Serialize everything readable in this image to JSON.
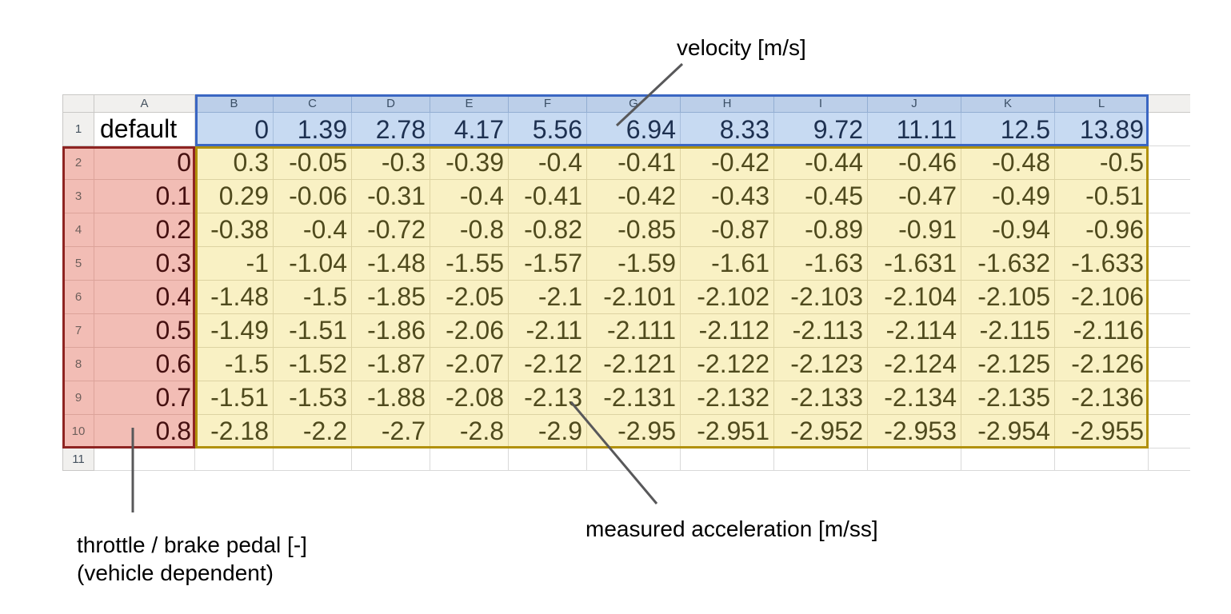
{
  "app": {
    "type": "spreadsheet-screenshot"
  },
  "spreadsheet": {
    "column_headers": [
      "A",
      "B",
      "C",
      "D",
      "E",
      "F",
      "G",
      "H",
      "I",
      "J",
      "K",
      "L"
    ],
    "row_numbers": [
      "1",
      "2",
      "3",
      "4",
      "5",
      "6",
      "7",
      "8",
      "9",
      "10",
      "11"
    ],
    "header_row": {
      "label": "default",
      "velocities": [
        "0",
        "1.39",
        "2.78",
        "4.17",
        "5.56",
        "6.94",
        "8.33",
        "9.72",
        "11.11",
        "12.5",
        "13.89"
      ]
    },
    "data_rows": [
      {
        "pedal": "0",
        "values": [
          "0.3",
          "-0.05",
          "-0.3",
          "-0.39",
          "-0.4",
          "-0.41",
          "-0.42",
          "-0.44",
          "-0.46",
          "-0.48",
          "-0.5"
        ]
      },
      {
        "pedal": "0.1",
        "values": [
          "0.29",
          "-0.06",
          "-0.31",
          "-0.4",
          "-0.41",
          "-0.42",
          "-0.43",
          "-0.45",
          "-0.47",
          "-0.49",
          "-0.51"
        ]
      },
      {
        "pedal": "0.2",
        "values": [
          "-0.38",
          "-0.4",
          "-0.72",
          "-0.8",
          "-0.82",
          "-0.85",
          "-0.87",
          "-0.89",
          "-0.91",
          "-0.94",
          "-0.96"
        ]
      },
      {
        "pedal": "0.3",
        "values": [
          "-1",
          "-1.04",
          "-1.48",
          "-1.55",
          "-1.57",
          "-1.59",
          "-1.61",
          "-1.63",
          "-1.631",
          "-1.632",
          "-1.633"
        ]
      },
      {
        "pedal": "0.4",
        "values": [
          "-1.48",
          "-1.5",
          "-1.85",
          "-2.05",
          "-2.1",
          "-2.101",
          "-2.102",
          "-2.103",
          "-2.104",
          "-2.105",
          "-2.106"
        ]
      },
      {
        "pedal": "0.5",
        "values": [
          "-1.49",
          "-1.51",
          "-1.86",
          "-2.06",
          "-2.11",
          "-2.111",
          "-2.112",
          "-2.113",
          "-2.114",
          "-2.115",
          "-2.116"
        ]
      },
      {
        "pedal": "0.6",
        "values": [
          "-1.5",
          "-1.52",
          "-1.87",
          "-2.07",
          "-2.12",
          "-2.121",
          "-2.122",
          "-2.123",
          "-2.124",
          "-2.125",
          "-2.126"
        ]
      },
      {
        "pedal": "0.7",
        "values": [
          "-1.51",
          "-1.53",
          "-1.88",
          "-2.08",
          "-2.13",
          "-2.131",
          "-2.132",
          "-2.133",
          "-2.134",
          "-2.135",
          "-2.136"
        ]
      },
      {
        "pedal": "0.8",
        "values": [
          "-2.18",
          "-2.2",
          "-2.7",
          "-2.8",
          "-2.9",
          "-2.95",
          "-2.951",
          "-2.952",
          "-2.953",
          "-2.954",
          "-2.955"
        ]
      }
    ]
  },
  "annotations": {
    "velocity_label": "velocity [m/s]",
    "acceleration_label": "measured acceleration [m/ss]",
    "throttle_label_line1": "throttle / brake pedal [-]",
    "throttle_label_line2": "(vehicle dependent)"
  },
  "colors": {
    "blue_fill": "#c7daf2",
    "blue_header_fill": "#bccfe9",
    "blue_border": "#3a66c2",
    "blue_text": "#1d3050",
    "red_fill": "#f2bdb5",
    "red_border": "#8e2422",
    "red_text": "#451010",
    "yellow_fill": "#f9f1c4",
    "yellow_border": "#b1910b",
    "yellow_text": "#4f4a1d",
    "line_color": "#58585a"
  }
}
